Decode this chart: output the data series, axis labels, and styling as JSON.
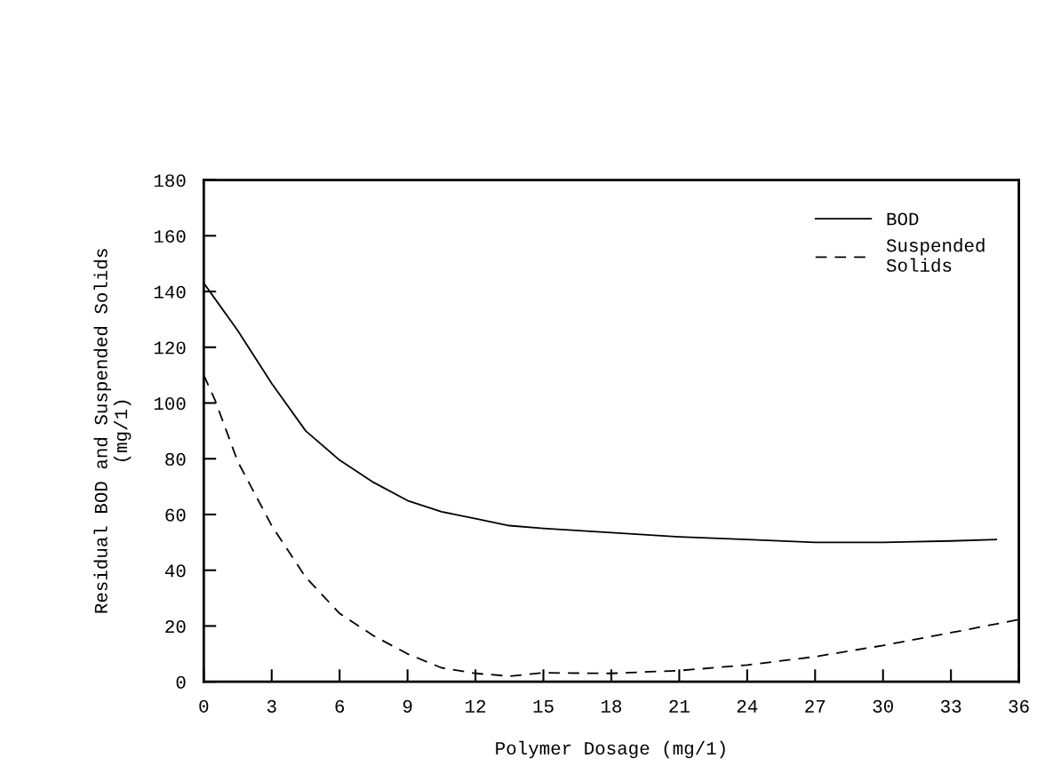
{
  "chart_data": {
    "type": "line",
    "xlabel": "Polymer Dosage (mg/1)",
    "ylabel": "Residual BOD and Suspended Solids\n(mg/1)",
    "xlim": [
      0,
      36
    ],
    "ylim": [
      0,
      180
    ],
    "xticks": [
      0,
      3,
      6,
      9,
      12,
      15,
      18,
      21,
      24,
      27,
      30,
      33,
      36
    ],
    "yticks": [
      0,
      20,
      40,
      60,
      80,
      100,
      120,
      140,
      160,
      180
    ],
    "grid": false,
    "legend": "top right",
    "marker": "none",
    "series": [
      {
        "name": "BOD",
        "color": "#000000",
        "line_style": "solid",
        "x": [
          0,
          1.5,
          3,
          4.5,
          6,
          7.5,
          9,
          10.5,
          12,
          13.5,
          15,
          18,
          21,
          24,
          27,
          30,
          33,
          35
        ],
        "values": [
          143,
          126,
          107,
          90,
          79.5,
          71.5,
          65,
          61,
          58.5,
          56,
          55,
          53.5,
          52,
          51,
          50,
          50,
          50.5,
          51
        ]
      },
      {
        "name": "Suspended\nSolids",
        "color": "#000000",
        "line_style": "dashed",
        "x": [
          0,
          0.5,
          1.5,
          3,
          4.5,
          6,
          7.5,
          9,
          10.5,
          12,
          13.5,
          15,
          18,
          21,
          24,
          27,
          30,
          33,
          36
        ],
        "values": [
          110,
          101,
          79,
          56,
          37.5,
          24.5,
          16.5,
          10,
          5,
          3,
          2,
          3.2,
          3,
          4,
          6,
          9,
          13,
          17.6,
          22.3
        ]
      }
    ]
  }
}
